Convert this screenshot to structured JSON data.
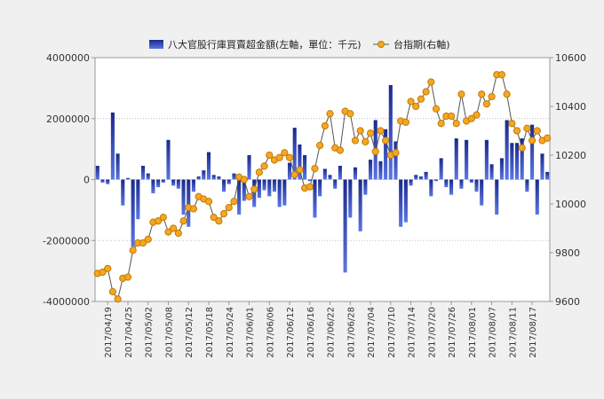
{
  "chart_data": {
    "type": "bar",
    "legend": {
      "placement": "top",
      "bar_series_label": "八大官股行庫買賣超金額(左軸，單位：千元)",
      "line_series_label": "台指期(右軸)"
    },
    "colors": {
      "bar_top": "#1a2a8a",
      "bar_bottom": "#5b76e6",
      "line": "#555555",
      "marker_fill": "#f5a623",
      "marker_stroke": "#c07a00",
      "grid": "#bbbbbb",
      "plot_bg": "#ffffff",
      "page_bg": "#f0f0f0"
    },
    "left_axis": {
      "ylim": [
        -4000000,
        4000000
      ],
      "ticks": [
        -4000000,
        -2000000,
        0,
        2000000,
        4000000
      ],
      "tick_labels": [
        "-4000000",
        "-2000000",
        "0",
        "2000000",
        "4000000"
      ]
    },
    "right_axis": {
      "ylim": [
        9600,
        10600
      ],
      "ticks": [
        9600,
        9800,
        10000,
        10200,
        10400,
        10600
      ],
      "tick_labels": [
        "9600",
        "9800",
        "10000",
        "10200",
        "10400",
        "10600"
      ]
    },
    "x_tick_labels": [
      "2017/04/19",
      "2017/04/25",
      "2017/05/02",
      "2017/05/08",
      "2017/05/12",
      "2017/05/18",
      "2017/05/24",
      "2017/06/01",
      "2017/06/06",
      "2017/06/12",
      "2017/06/16",
      "2017/06/22",
      "2017/06/28",
      "2017/07/04",
      "2017/07/10",
      "2017/07/14",
      "2017/07/20",
      "2017/07/26",
      "2017/08/01",
      "2017/08/07",
      "2017/08/11",
      "2017/08/17"
    ],
    "label_every": 4,
    "series": [
      {
        "name": "八大官股行庫買賣超金額",
        "axis": "left",
        "kind": "bar",
        "values": [
          450000,
          -100000,
          -150000,
          2200000,
          850000,
          -850000,
          50000,
          -2200000,
          -1300000,
          450000,
          200000,
          -450000,
          -250000,
          -100000,
          1300000,
          -200000,
          -300000,
          -1150000,
          -1550000,
          -400000,
          100000,
          300000,
          900000,
          150000,
          100000,
          -400000,
          -150000,
          200000,
          -1150000,
          -700000,
          800000,
          -900000,
          -600000,
          -350000,
          -550000,
          -400000,
          -900000,
          -850000,
          550000,
          1700000,
          1150000,
          800000,
          -50000,
          -1250000,
          -550000,
          350000,
          150000,
          -300000,
          450000,
          -3050000,
          -1250000,
          400000,
          -1700000,
          -500000,
          650000,
          1950000,
          600000,
          1650000,
          3100000,
          1250000,
          -1550000,
          -1400000,
          -200000,
          150000,
          100000,
          250000,
          -550000,
          -50000,
          700000,
          -250000,
          -500000,
          1350000,
          -300000,
          1300000,
          -100000,
          -400000,
          -850000,
          1300000,
          500000,
          -1150000,
          700000,
          1950000,
          1200000,
          1200000,
          1350000,
          -400000,
          1800000,
          -1150000,
          850000,
          250000
        ]
      },
      {
        "name": "台指期",
        "axis": "right",
        "kind": "line",
        "values": [
          9715,
          9720,
          9735,
          9640,
          9610,
          9695,
          9700,
          9810,
          9840,
          9840,
          9855,
          9925,
          9930,
          9945,
          9885,
          9900,
          9880,
          9930,
          9985,
          9980,
          10030,
          10020,
          10010,
          9945,
          9930,
          9960,
          9985,
          10010,
          10110,
          10100,
          10030,
          10060,
          10130,
          10155,
          10200,
          10180,
          10190,
          10210,
          10190,
          10120,
          10140,
          10065,
          10070,
          10145,
          10240,
          10320,
          10370,
          10230,
          10220,
          10380,
          10370,
          10260,
          10300,
          10255,
          10290,
          10215,
          10300,
          10260,
          10200,
          10210,
          10340,
          10335,
          10420,
          10400,
          10430,
          10460,
          10500,
          10390,
          10330,
          10360,
          10360,
          10330,
          10450,
          10340,
          10350,
          10365,
          10450,
          10410,
          10440,
          10530,
          10530,
          10450,
          10330,
          10300,
          10230,
          10310,
          10260,
          10300,
          10260,
          10270
        ]
      }
    ]
  }
}
